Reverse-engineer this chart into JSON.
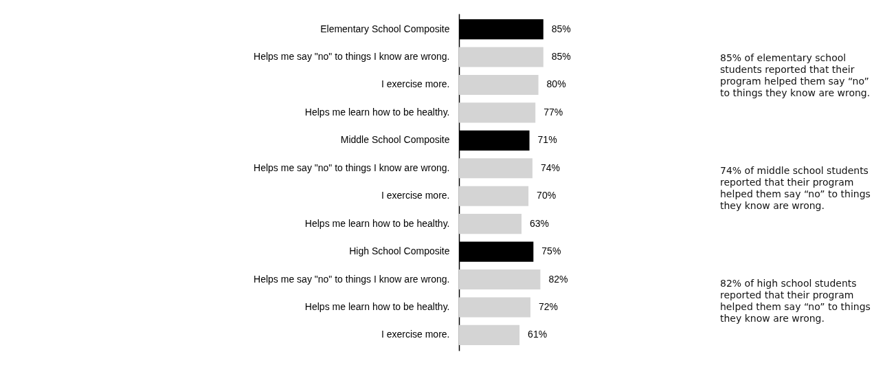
{
  "chart_data": {
    "type": "bar",
    "orientation": "horizontal",
    "tick_labels": "y",
    "categories": [
      "Elementary School Composite",
      "Helps me say \"no\" to things I know are wrong.",
      "I exercise more.",
      "Helps me learn how to be healthy.",
      "Middle School Composite",
      "Helps me say \"no\" to things I know are wrong.",
      "I exercise more.",
      "Helps me learn how to be healthy.",
      "High School Composite",
      "Helps me say \"no\" to things I know are wrong.",
      "Helps me learn how to be healthy.",
      "I exercise more."
    ],
    "values": [
      85,
      85,
      80,
      77,
      71,
      74,
      70,
      63,
      75,
      82,
      72,
      61
    ],
    "colors": [
      "#000000",
      "#d4d4d4",
      "#d4d4d4",
      "#d4d4d4",
      "#000000",
      "#d4d4d4",
      "#d4d4d4",
      "#d4d4d4",
      "#000000",
      "#d4d4d4",
      "#d4d4d4",
      "#d4d4d4"
    ],
    "value_labels": [
      "85%",
      "85%",
      "80%",
      "77%",
      "71%",
      "74%",
      "70%",
      "63%",
      "75%",
      "82%",
      "72%",
      "61%"
    ],
    "annotations": [
      "85% of elementary school students reported that their program helped them say “no” to things they know are wrong.",
      "74% of middle school students reported that their program helped them say “no” to things they know are wrong.",
      "82% of high school students reported that their program helped them say “no” to things they know are wrong."
    ]
  }
}
